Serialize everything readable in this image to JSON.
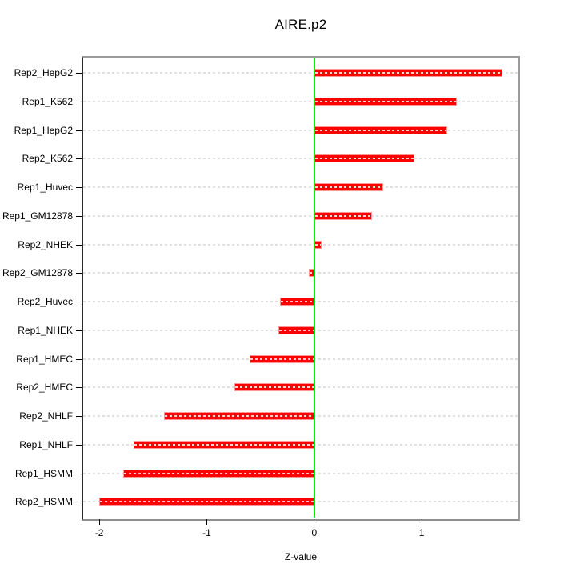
{
  "title": "AIRE.p2",
  "xlabel": "Z-value",
  "colors": {
    "bar": "#ff0000",
    "bar_edge": "#ff9797",
    "bar_dash_overlay": "#fff5f5",
    "zero_line": "#00ee00",
    "grid": "#e0e0e0",
    "box": "#9b9b9b",
    "axis": "#000000",
    "text": "#000000",
    "background": "#ffffff"
  },
  "chart_data": {
    "type": "bar",
    "orientation": "horizontal",
    "title": "AIRE.p2",
    "xlabel": "Z-value",
    "ylabel": "",
    "categories": [
      "Rep2_HepG2",
      "Rep1_K562",
      "Rep1_HepG2",
      "Rep2_K562",
      "Rep1_Huvec",
      "Rep1_GM12878",
      "Rep2_NHEK",
      "Rep2_GM12878",
      "Rep2_Huvec",
      "Rep1_NHEK",
      "Rep1_HMEC",
      "Rep2_HMEC",
      "Rep2_NHLF",
      "Rep1_NHLF",
      "Rep1_HSMM",
      "Rep2_HSMM"
    ],
    "values": [
      1.75,
      1.33,
      1.24,
      0.93,
      0.64,
      0.54,
      0.07,
      -0.05,
      -0.32,
      -0.33,
      -0.6,
      -0.74,
      -1.4,
      -1.68,
      -1.78,
      -2.0
    ],
    "xlim": [
      -2.15,
      1.9
    ],
    "x_ticks": [
      -2,
      -1,
      0,
      1
    ],
    "zero_line": 0,
    "grid": "horizontal-dashed-per-category",
    "legend": null
  }
}
